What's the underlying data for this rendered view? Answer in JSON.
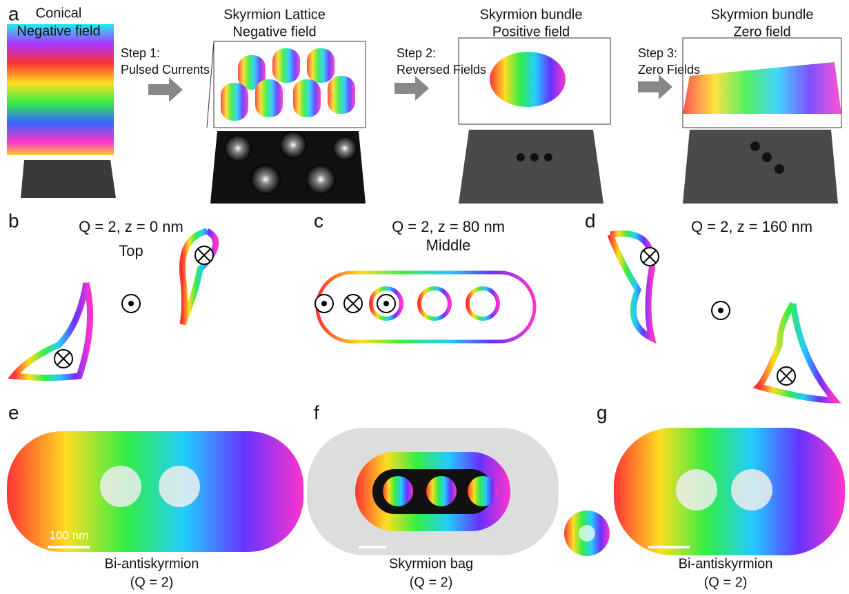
{
  "panels": {
    "a": {
      "label": "a",
      "stages": [
        [
          "Conical",
          "Negative field"
        ],
        [
          "Skyrmion Lattice",
          "Negative field"
        ],
        [
          "Skyrmion bundle",
          "Positive field"
        ],
        [
          "Skyrmion bundle",
          "Zero field"
        ]
      ],
      "steps": [
        [
          "Step 1:",
          "Pulsed Currents"
        ],
        [
          "Step 2:",
          "Reversed Fields"
        ],
        [
          "Step 3:",
          "Zero Fields"
        ]
      ]
    },
    "b": {
      "label": "b",
      "title": "Q = 2, z = 0 nm",
      "subtitle": "Top"
    },
    "c": {
      "label": "c",
      "title": "Q = 2, z = 80 nm",
      "subtitle": "Middle"
    },
    "d": {
      "label": "d",
      "title": "Q = 2, z = 160 nm"
    },
    "e": {
      "label": "e",
      "scale_bar": "100 nm",
      "caption": [
        "Bi-antiskyrmion",
        "(Q = 2)"
      ]
    },
    "f": {
      "label": "f",
      "caption": [
        "Skyrmion bag",
        "(Q = 2)"
      ]
    },
    "g": {
      "label": "g",
      "caption": [
        "Bi-antiskyrmion",
        "(Q = 2)"
      ]
    }
  }
}
